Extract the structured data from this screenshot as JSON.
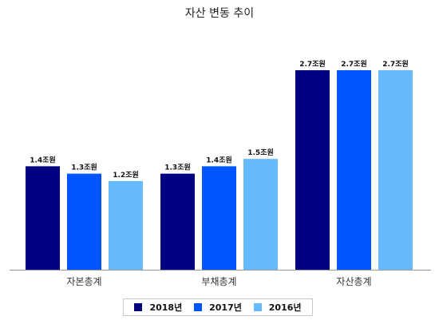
{
  "chart_data": {
    "type": "bar",
    "title": "자산 변동 추이",
    "categories": [
      "자본총계",
      "부채총계",
      "자산총계"
    ],
    "series": [
      {
        "name": "2018년",
        "color": "#000080",
        "values": [
          1.4,
          1.3,
          2.7
        ],
        "labels": [
          "1.4조원",
          "1.3조원",
          "2.7조원"
        ]
      },
      {
        "name": "2017년",
        "color": "#0055ff",
        "values": [
          1.3,
          1.4,
          2.7
        ],
        "labels": [
          "1.3조원",
          "1.4조원",
          "2.7조원"
        ]
      },
      {
        "name": "2016년",
        "color": "#66bbff",
        "values": [
          1.2,
          1.5,
          2.7
        ],
        "labels": [
          "1.2조원",
          "1.5조원",
          "2.7조원"
        ]
      }
    ],
    "legend_position": "bottom",
    "grid": false,
    "ylim": [
      0,
      3.1
    ]
  }
}
